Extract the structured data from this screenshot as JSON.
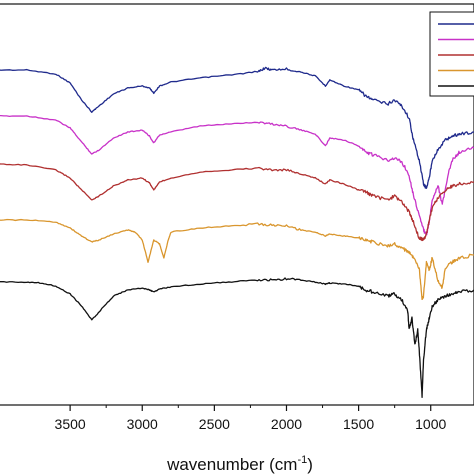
{
  "chart_data": {
    "type": "line",
    "title": "",
    "xlabel": "wavenumber (cm",
    "xlabel_sup": "-1",
    "xlabel_close": ")",
    "ylabel": "",
    "xlim": [
      4000,
      700
    ],
    "x_reversed": true,
    "x_ticks": [
      3500,
      3000,
      2500,
      2000,
      1500,
      1000
    ],
    "y_ticks_shown": false,
    "grid": false,
    "legend": "top-right",
    "series": [
      {
        "color": "#1f2a8c",
        "baseline": 68,
        "points": [
          [
            4000,
            70
          ],
          [
            3800,
            70
          ],
          [
            3600,
            74
          ],
          [
            3500,
            83
          ],
          [
            3420,
            100
          ],
          [
            3350,
            112
          ],
          [
            3300,
            106
          ],
          [
            3200,
            94
          ],
          [
            3100,
            88
          ],
          [
            3000,
            86
          ],
          [
            2950,
            88
          ],
          [
            2920,
            93
          ],
          [
            2880,
            86
          ],
          [
            2800,
            82
          ],
          [
            2600,
            78
          ],
          [
            2400,
            75
          ],
          [
            2200,
            72
          ],
          [
            2150,
            68
          ],
          [
            2100,
            70
          ],
          [
            2000,
            69
          ],
          [
            1900,
            72
          ],
          [
            1800,
            76
          ],
          [
            1730,
            86
          ],
          [
            1700,
            80
          ],
          [
            1600,
            86
          ],
          [
            1500,
            90
          ],
          [
            1450,
            96
          ],
          [
            1400,
            100
          ],
          [
            1300,
            104
          ],
          [
            1250,
            100
          ],
          [
            1200,
            106
          ],
          [
            1150,
            118
          ],
          [
            1120,
            140
          ],
          [
            1080,
            160
          ],
          [
            1050,
            184
          ],
          [
            1030,
            188
          ],
          [
            1010,
            178
          ],
          [
            990,
            160
          ],
          [
            950,
            150
          ],
          [
            900,
            140
          ],
          [
            850,
            136
          ],
          [
            800,
            134
          ],
          [
            700,
            132
          ]
        ]
      },
      {
        "color": "#c832c8",
        "baseline": 115,
        "points": [
          [
            4000,
            116
          ],
          [
            3800,
            116
          ],
          [
            3600,
            120
          ],
          [
            3500,
            128
          ],
          [
            3420,
            142
          ],
          [
            3350,
            154
          ],
          [
            3300,
            150
          ],
          [
            3200,
            138
          ],
          [
            3100,
            132
          ],
          [
            3000,
            130
          ],
          [
            2950,
            136
          ],
          [
            2920,
            143
          ],
          [
            2880,
            135
          ],
          [
            2800,
            132
          ],
          [
            2600,
            126
          ],
          [
            2400,
            124
          ],
          [
            2200,
            122
          ],
          [
            2100,
            124
          ],
          [
            2000,
            126
          ],
          [
            1900,
            130
          ],
          [
            1800,
            134
          ],
          [
            1730,
            146
          ],
          [
            1700,
            138
          ],
          [
            1600,
            140
          ],
          [
            1500,
            146
          ],
          [
            1450,
            152
          ],
          [
            1400,
            155
          ],
          [
            1300,
            160
          ],
          [
            1250,
            158
          ],
          [
            1200,
            162
          ],
          [
            1150,
            175
          ],
          [
            1120,
            195
          ],
          [
            1080,
            215
          ],
          [
            1050,
            230
          ],
          [
            1030,
            235
          ],
          [
            1010,
            222
          ],
          [
            990,
            200
          ],
          [
            950,
            185
          ],
          [
            920,
            205
          ],
          [
            880,
            175
          ],
          [
            850,
            160
          ],
          [
            800,
            152
          ],
          [
            700,
            148
          ]
        ]
      },
      {
        "color": "#b03030",
        "baseline": 164,
        "points": [
          [
            4000,
            164
          ],
          [
            3800,
            165
          ],
          [
            3600,
            170
          ],
          [
            3500,
            178
          ],
          [
            3420,
            190
          ],
          [
            3350,
            200
          ],
          [
            3300,
            196
          ],
          [
            3200,
            186
          ],
          [
            3100,
            180
          ],
          [
            3000,
            178
          ],
          [
            2950,
            183
          ],
          [
            2920,
            190
          ],
          [
            2880,
            182
          ],
          [
            2800,
            178
          ],
          [
            2600,
            172
          ],
          [
            2400,
            170
          ],
          [
            2200,
            168
          ],
          [
            2100,
            170
          ],
          [
            2000,
            170
          ],
          [
            1900,
            174
          ],
          [
            1800,
            178
          ],
          [
            1730,
            184
          ],
          [
            1700,
            180
          ],
          [
            1600,
            184
          ],
          [
            1500,
            190
          ],
          [
            1450,
            192
          ],
          [
            1400,
            196
          ],
          [
            1300,
            200
          ],
          [
            1250,
            196
          ],
          [
            1200,
            202
          ],
          [
            1150,
            212
          ],
          [
            1120,
            222
          ],
          [
            1080,
            238
          ],
          [
            1050,
            240
          ],
          [
            1030,
            234
          ],
          [
            1010,
            220
          ],
          [
            990,
            208
          ],
          [
            950,
            198
          ],
          [
            900,
            190
          ],
          [
            850,
            186
          ],
          [
            800,
            184
          ],
          [
            700,
            182
          ]
        ]
      },
      {
        "color": "#d9962e",
        "baseline": 219,
        "points": [
          [
            4000,
            220
          ],
          [
            3800,
            220
          ],
          [
            3600,
            222
          ],
          [
            3500,
            228
          ],
          [
            3420,
            236
          ],
          [
            3350,
            242
          ],
          [
            3300,
            240
          ],
          [
            3200,
            234
          ],
          [
            3100,
            230
          ],
          [
            3050,
            232
          ],
          [
            3000,
            240
          ],
          [
            2960,
            262
          ],
          [
            2920,
            240
          ],
          [
            2880,
            244
          ],
          [
            2850,
            258
          ],
          [
            2820,
            240
          ],
          [
            2800,
            232
          ],
          [
            2600,
            228
          ],
          [
            2400,
            226
          ],
          [
            2200,
            224
          ],
          [
            2100,
            225
          ],
          [
            2000,
            226
          ],
          [
            1900,
            230
          ],
          [
            1800,
            232
          ],
          [
            1730,
            236
          ],
          [
            1700,
            234
          ],
          [
            1600,
            236
          ],
          [
            1500,
            238
          ],
          [
            1450,
            240
          ],
          [
            1400,
            242
          ],
          [
            1300,
            246
          ],
          [
            1250,
            244
          ],
          [
            1200,
            248
          ],
          [
            1150,
            252
          ],
          [
            1120,
            258
          ],
          [
            1080,
            268
          ],
          [
            1060,
            300
          ],
          [
            1050,
            296
          ],
          [
            1030,
            262
          ],
          [
            1010,
            270
          ],
          [
            990,
            258
          ],
          [
            950,
            280
          ],
          [
            920,
            288
          ],
          [
            900,
            268
          ],
          [
            850,
            262
          ],
          [
            800,
            258
          ],
          [
            700,
            255
          ]
        ]
      },
      {
        "color": "#111111",
        "baseline": 281,
        "points": [
          [
            4000,
            282
          ],
          [
            3800,
            282
          ],
          [
            3700,
            283
          ],
          [
            3600,
            286
          ],
          [
            3500,
            294
          ],
          [
            3420,
            306
          ],
          [
            3350,
            320
          ],
          [
            3300,
            312
          ],
          [
            3200,
            296
          ],
          [
            3100,
            290
          ],
          [
            3000,
            288
          ],
          [
            2950,
            290
          ],
          [
            2920,
            292
          ],
          [
            2880,
            289
          ],
          [
            2800,
            287
          ],
          [
            2600,
            284
          ],
          [
            2400,
            282
          ],
          [
            2200,
            280
          ],
          [
            2100,
            280
          ],
          [
            2000,
            279
          ],
          [
            1900,
            280
          ],
          [
            1800,
            282
          ],
          [
            1730,
            284
          ],
          [
            1700,
            283
          ],
          [
            1600,
            284
          ],
          [
            1500,
            286
          ],
          [
            1450,
            290
          ],
          [
            1400,
            292
          ],
          [
            1300,
            296
          ],
          [
            1250,
            294
          ],
          [
            1200,
            300
          ],
          [
            1160,
            310
          ],
          [
            1150,
            330
          ],
          [
            1130,
            318
          ],
          [
            1110,
            345
          ],
          [
            1090,
            330
          ],
          [
            1080,
            350
          ],
          [
            1060,
            396
          ],
          [
            1050,
            360
          ],
          [
            1030,
            330
          ],
          [
            1010,
            318
          ],
          [
            990,
            306
          ],
          [
            950,
            300
          ],
          [
            900,
            296
          ],
          [
            850,
            294
          ],
          [
            800,
            292
          ],
          [
            700,
            290
          ]
        ]
      }
    ]
  }
}
